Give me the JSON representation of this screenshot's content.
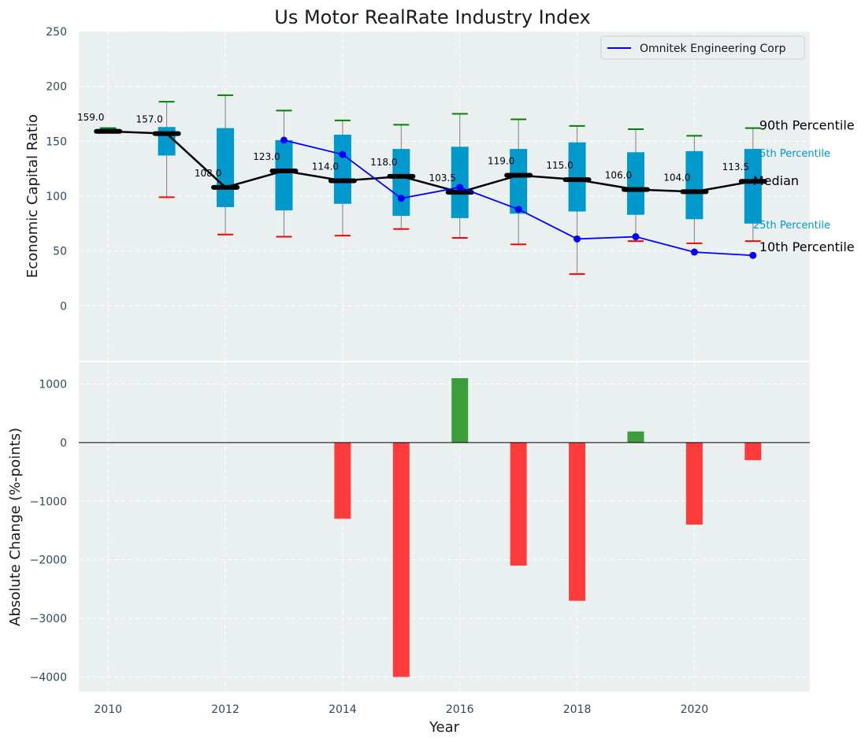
{
  "chart_data": [
    {
      "type": "box",
      "title": "Us Motor RealRate Industry Index",
      "xlabel": "",
      "ylabel": "Economic Capital Ratio",
      "ylim": [
        -50,
        250
      ],
      "yticks": [
        0,
        50,
        100,
        150,
        200,
        250
      ],
      "xlim": [
        2009.5,
        2021.97
      ],
      "grid": true,
      "legend": {
        "position": "top-right",
        "entries": [
          "Omnitek Engineering Corp"
        ]
      },
      "years": [
        2010,
        2011,
        2012,
        2013,
        2014,
        2015,
        2016,
        2017,
        2018,
        2019,
        2020,
        2021
      ],
      "p90": [
        162,
        186,
        192,
        178,
        169,
        165,
        175,
        170,
        164,
        161,
        155,
        162
      ],
      "p75": [
        162,
        163,
        162,
        151,
        156,
        143,
        145,
        143,
        149,
        140,
        141,
        143
      ],
      "median": [
        159.0,
        157.0,
        108.0,
        123.0,
        114.0,
        118.0,
        103.5,
        119.0,
        115.0,
        106.0,
        104.0,
        113.5
      ],
      "median_labels": [
        "159.0",
        "157.0",
        "108.0",
        "123.0",
        "114.0",
        "118.0",
        "103.5",
        "119.0",
        "115.0",
        "106.0",
        "104.0",
        "113.5"
      ],
      "p25": [
        159,
        137,
        90,
        87,
        93,
        82,
        80,
        84,
        86,
        83,
        79,
        75
      ],
      "p10": [
        159,
        99,
        65,
        63,
        64,
        70,
        62,
        56,
        29,
        59,
        57,
        59
      ],
      "company": {
        "name": "Omnitek Engineering Corp",
        "x": [
          2013,
          2014,
          2015,
          2016,
          2017,
          2018,
          2019,
          2020,
          2021
        ],
        "values": [
          151,
          138,
          98,
          108,
          88,
          61,
          63,
          49,
          46
        ]
      },
      "right_labels": {
        "p90": "90th Percentile",
        "p75": "75th Percentile",
        "median": "Median",
        "p25": "25th Percentile",
        "p10": "10th Percentile"
      },
      "colors": {
        "box": "#0099cc",
        "median": "#000000",
        "company": "#0000ff",
        "p90_cap": "#008000",
        "p10_cap": "#ff0000",
        "whisker": "#808080",
        "plot_bg": "#eaeff0",
        "axis_text": "#2e4a5f",
        "percentile_text": "#0099cc"
      },
      "xticks": []
    },
    {
      "type": "bar",
      "xlabel": "Year",
      "ylabel": "Absolute Change (%-points)",
      "ylim": [
        -4250,
        1370
      ],
      "yticks": [
        -4000,
        -3000,
        -2000,
        -1000,
        0,
        1000
      ],
      "xlim": [
        2009.5,
        2021.97
      ],
      "xticks": [
        2010,
        2012,
        2014,
        2016,
        2018,
        2020
      ],
      "grid": true,
      "x": [
        2014,
        2015,
        2016,
        2017,
        2018,
        2019,
        2020,
        2021
      ],
      "values": [
        -1300,
        -4000,
        1100,
        -2100,
        -2700,
        190,
        -1400,
        -300
      ],
      "colors": {
        "positive": "#3a9e3a",
        "negative": "#ff3b3b",
        "zero_line": "#000000",
        "plot_bg": "#eaeff0"
      }
    }
  ]
}
